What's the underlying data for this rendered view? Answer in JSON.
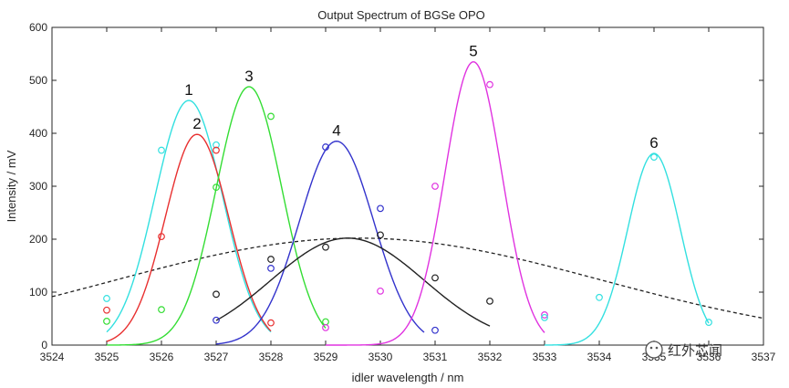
{
  "chart_data": {
    "type": "line",
    "title": "Output Spectrum of BGSe OPO",
    "xlabel": "idler wavelength / nm",
    "ylabel": "Intensity / mV",
    "xlim": [
      3524,
      3537
    ],
    "ylim": [
      0,
      600
    ],
    "xticks": [
      "3524",
      "3525",
      "3526",
      "3527",
      "3528",
      "3529",
      "3530",
      "3531",
      "3532",
      "3533",
      "3534",
      "3535",
      "3536",
      "3537"
    ],
    "yticks": [
      "0",
      "100",
      "200",
      "300",
      "400",
      "500",
      "600"
    ],
    "grid": false,
    "series": [
      {
        "name": "1",
        "label": "1",
        "color": "#33e0e0",
        "fit": {
          "amp": 462,
          "center": 3526.5,
          "sigma": 0.62,
          "x_start": 3525,
          "x_end": 3528
        },
        "points": [
          [
            3525,
            88
          ],
          [
            3526,
            368
          ],
          [
            3527,
            378
          ]
        ]
      },
      {
        "name": "2",
        "label": "2",
        "color": "#e83030",
        "fit": {
          "amp": 398,
          "center": 3526.65,
          "sigma": 0.58,
          "x_start": 3525,
          "x_end": 3528
        },
        "points": [
          [
            3525,
            66
          ],
          [
            3526,
            205
          ],
          [
            3527,
            368
          ],
          [
            3528,
            42
          ]
        ]
      },
      {
        "name": "3",
        "label": "3",
        "color": "#33dd33",
        "fit": {
          "amp": 488,
          "center": 3527.6,
          "sigma": 0.6,
          "x_start": 3525,
          "x_end": 3529
        },
        "points": [
          [
            3525,
            45
          ],
          [
            3526,
            67
          ],
          [
            3527,
            298
          ],
          [
            3528,
            432
          ],
          [
            3529,
            44
          ]
        ]
      },
      {
        "name": "4",
        "label": "4",
        "color": "#3333cc",
        "fit": {
          "amp": 385,
          "center": 3529.2,
          "sigma": 0.68,
          "x_start": 3527,
          "x_end": 3530.8
        },
        "points": [
          [
            3527,
            47
          ],
          [
            3528,
            145
          ],
          [
            3529,
            374
          ],
          [
            3530,
            258
          ],
          [
            3531,
            28
          ]
        ]
      },
      {
        "name": "black",
        "label": "",
        "color": "#222222",
        "fit": {
          "amp": 202,
          "center": 3529.4,
          "sigma": 1.4,
          "x_start": 3527,
          "x_end": 3532
        },
        "points": [
          [
            3527,
            96
          ],
          [
            3528,
            162
          ],
          [
            3529,
            185
          ],
          [
            3530,
            208
          ],
          [
            3531,
            127
          ],
          [
            3532,
            83
          ]
        ]
      },
      {
        "name": "5",
        "label": "5",
        "color": "#e033e0",
        "fit": {
          "amp": 535,
          "center": 3531.7,
          "sigma": 0.52,
          "x_start": 3529,
          "x_end": 3533
        },
        "points": [
          [
            3529,
            33
          ],
          [
            3530,
            102
          ],
          [
            3531,
            300
          ],
          [
            3532,
            492
          ],
          [
            3533,
            57
          ]
        ]
      },
      {
        "name": "6",
        "label": "6",
        "color": "#33e0e0",
        "fit": {
          "amp": 362,
          "center": 3535.0,
          "sigma": 0.48,
          "x_start": 3533,
          "x_end": 3536
        },
        "points": [
          [
            3533,
            52
          ],
          [
            3534,
            90
          ],
          [
            3535,
            355
          ],
          [
            3536,
            43
          ]
        ]
      }
    ],
    "envelope": {
      "name": "dashed-envelope",
      "style": "dashed",
      "color": "#222222",
      "amp": 202,
      "center": 3529.6,
      "sigma": 4.45,
      "x_start": 3524,
      "x_end": 3537
    }
  },
  "watermark": {
    "text": "红外芯闻"
  }
}
